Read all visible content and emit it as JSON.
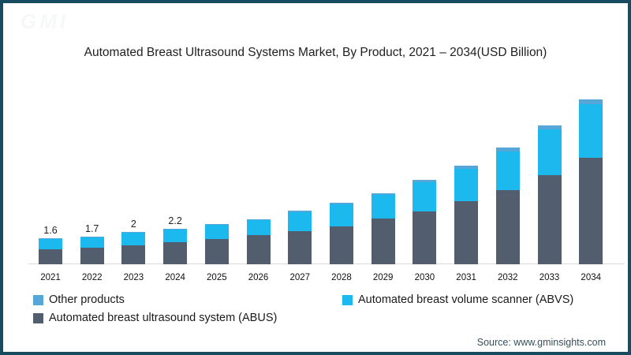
{
  "page": {
    "title": "Automated Breast Ultrasound Systems Market, By Product, 2021 – 2034(USD Billion)",
    "source": "Source: www.gminsights.com",
    "watermark": "GMI"
  },
  "legend": {
    "items": [
      {
        "id": "other",
        "label": "Other products",
        "color": "#55A7D8"
      },
      {
        "id": "abvs",
        "label": "Automated breast volume scanner (ABVS)",
        "color": "#1CB9EE"
      },
      {
        "id": "abus",
        "label": "Automated breast ultrasound system (ABUS)",
        "color": "#525E6E"
      }
    ]
  },
  "chart_data": {
    "type": "bar",
    "stacked": true,
    "title": "Automated Breast Ultrasound Systems Market, By Product, 2021 – 2034(USD Billion)",
    "xlabel": "",
    "ylabel": "USD Billion",
    "ylim": [
      0,
      11
    ],
    "grid": false,
    "legend_position": "bottom",
    "categories": [
      "2021",
      "2022",
      "2023",
      "2024",
      "2025",
      "2026",
      "2027",
      "2028",
      "2029",
      "2030",
      "2031",
      "2032",
      "2033",
      "2034"
    ],
    "series": [
      {
        "name": "Automated breast ultrasound system (ABUS)",
        "color": "#525E6E",
        "values": [
          0.95,
          1.02,
          1.17,
          1.37,
          1.56,
          1.8,
          2.05,
          2.34,
          2.83,
          3.27,
          3.9,
          4.59,
          5.51,
          6.59
        ]
      },
      {
        "name": "Automated breast volume scanner (ABVS)",
        "color": "#1CB9EE",
        "values": [
          0.62,
          0.64,
          0.79,
          0.78,
          0.88,
          0.93,
          1.17,
          1.36,
          1.45,
          1.78,
          2.02,
          2.39,
          2.83,
          3.31
        ]
      },
      {
        "name": "Other products",
        "color": "#55A7D8",
        "values": [
          0.03,
          0.04,
          0.04,
          0.05,
          0.06,
          0.07,
          0.08,
          0.1,
          0.12,
          0.15,
          0.18,
          0.22,
          0.26,
          0.3
        ]
      }
    ],
    "totals": [
      1.6,
      1.7,
      2.0,
      2.2,
      2.5,
      2.8,
      3.3,
      3.8,
      4.4,
      5.2,
      6.1,
      7.2,
      8.6,
      10.2
    ],
    "point_labels": [
      "1.6",
      "1.7",
      "2",
      "2.2",
      "",
      "",
      "",
      "",
      "",
      "",
      "",
      "",
      "",
      ""
    ]
  }
}
